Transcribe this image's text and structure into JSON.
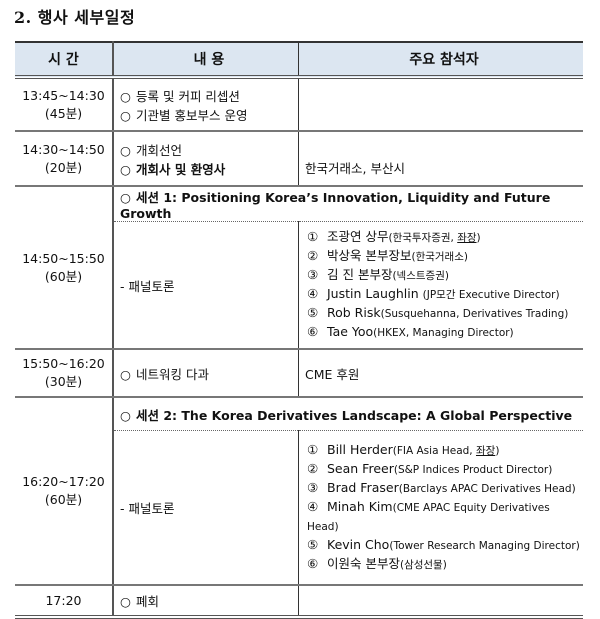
{
  "title": "2. 행사 세부일정",
  "headers": [
    "시 간",
    "내  용",
    "주요 참석자"
  ],
  "rows": [
    {
      "time": "13:45~14:30",
      "dur": "(45분)",
      "items": [
        "등록 및 커피 리셉션",
        "기관별 홍보부스 운영"
      ]
    },
    {
      "time": "14:30~14:50",
      "dur": "(20분)",
      "items": [
        "개회선언",
        "개회사 및 환영사"
      ],
      "attendees": "한국거래소, 부산시"
    },
    {
      "time": "14:50~15:50",
      "dur": "(60분)",
      "session": "세션 1: Positioning Korea’s Innovation, Liquidity and Future Growth",
      "sub": "- 패널토론",
      "panel": [
        {
          "n": "①",
          "name": "조광연 상무",
          "aff": "(한국투자증권, ",
          "chair": "좌장",
          "close": ")"
        },
        {
          "n": "②",
          "name": "박상욱 본부장보",
          "aff": "(한국거래소)"
        },
        {
          "n": "③",
          "name": "김  진 본부장",
          "aff": "(넥스트증권)"
        },
        {
          "n": "④",
          "name": "Justin Laughlin ",
          "aff": "(JP모간 Executive Director)"
        },
        {
          "n": "⑤",
          "name": "Rob Risk",
          "aff": "(Susquehanna,  Derivatives Trading)"
        },
        {
          "n": "⑥",
          "name": "Tae Yoo",
          "aff": "(HKEX, Managing Director)"
        }
      ]
    },
    {
      "time": "15:50~16:20",
      "dur": "(30분)",
      "items": [
        "네트워킹 다과"
      ],
      "attendees": "CME 후원"
    },
    {
      "time": "16:20~17:20",
      "dur": "(60분)",
      "session": "세션 2: The Korea Derivatives Landscape: A Global Perspective",
      "sub": "- 패널토론",
      "panel": [
        {
          "n": "①",
          "name": "Bill Herder",
          "aff": "(FIA Asia Head, ",
          "chair": "좌장",
          "close": ")"
        },
        {
          "n": "②",
          "name": "Sean Freer",
          "aff": "(S&P Indices Product Director)"
        },
        {
          "n": "③",
          "name": "Brad Fraser",
          "aff": "(Barclays APAC Derivatives Head)"
        },
        {
          "n": "④",
          "name": "Minah Kim",
          "aff": "(CME APAC Equity Derivatives Head)"
        },
        {
          "n": "⑤",
          "name": "Kevin Cho",
          "aff": "(Tower Research Managing Director)"
        },
        {
          "n": "⑥",
          "name": "이원숙 본부장",
          "aff": "(삼성선물)"
        }
      ]
    },
    {
      "time": "17:20",
      "items": [
        "폐회"
      ]
    }
  ]
}
